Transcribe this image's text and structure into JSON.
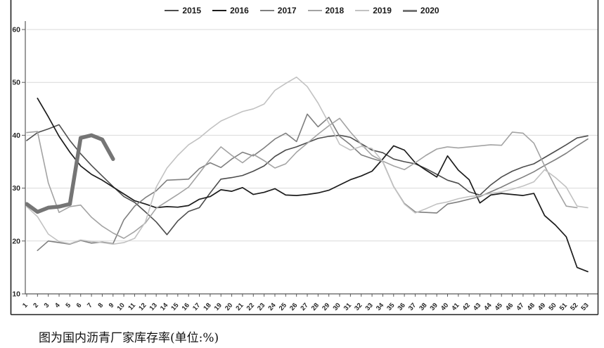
{
  "caption": "图为国内沥青厂家库存率(单位:%)",
  "chart_data": {
    "type": "line",
    "title": "",
    "xlabel": "",
    "ylabel": "",
    "unit": "%",
    "categories": [
      1,
      2,
      3,
      4,
      5,
      6,
      7,
      8,
      9,
      10,
      11,
      12,
      13,
      14,
      15,
      16,
      17,
      18,
      19,
      20,
      21,
      22,
      23,
      24,
      25,
      26,
      27,
      28,
      29,
      30,
      31,
      32,
      33,
      34,
      35,
      36,
      37,
      38,
      39,
      40,
      41,
      42,
      43,
      44,
      45,
      46,
      47,
      48,
      49,
      50,
      51,
      52,
      53
    ],
    "ylim": [
      10,
      60
    ],
    "yticks": [
      10,
      20,
      30,
      40,
      50,
      60
    ],
    "grid": true,
    "legend_position": "top",
    "colors": {
      "gridline": "#d9d9d9",
      "axis": "#595959",
      "frame": "#1f1f1f",
      "tick_text": "#262626"
    },
    "series": [
      {
        "name": "2015",
        "color": "#4d4d4d",
        "width": 1.6,
        "values": [
          39,
          40.5,
          41.2,
          42,
          39,
          36.5,
          34.3,
          32.3,
          30.3,
          28.4,
          27.3,
          25.5,
          23.6,
          21.2,
          23.8,
          25.6,
          26.3,
          29.1,
          31.7,
          32,
          32.4,
          33.2,
          34.2,
          36,
          37.2,
          37.8,
          38.6,
          39.4,
          39.8,
          40,
          39.6,
          38.4,
          37.2,
          36.7,
          35.5,
          35,
          34.6,
          33.7,
          32.6,
          31.5,
          30.9,
          29.3,
          28.7,
          30.6,
          32.1,
          33.2,
          34,
          34.6,
          35.8,
          37,
          38.2,
          39.5,
          39.9
        ]
      },
      {
        "name": "2016",
        "color": "#1c1c1c",
        "width": 1.7,
        "values": [
          null,
          47,
          43.5,
          39.8,
          36.8,
          34.2,
          32.6,
          31.5,
          30.2,
          28.9,
          27.6,
          27,
          26.3,
          26.5,
          26.4,
          26.7,
          27.9,
          28.4,
          29.7,
          29.4,
          30.1,
          28.8,
          29.2,
          29.9,
          28.7,
          28.6,
          28.8,
          29.1,
          29.6,
          30.6,
          31.6,
          32.3,
          33.2,
          35.5,
          38,
          37.2,
          34.8,
          33.4,
          32.1,
          36.1,
          33.4,
          31.6,
          27.2,
          28.7,
          29,
          28.8,
          28.6,
          29,
          24.8,
          23,
          20.8,
          15,
          14.2
        ]
      },
      {
        "name": "2017",
        "color": "#7f7f7f",
        "width": 1.6,
        "values": [
          null,
          18.2,
          20,
          19.7,
          19.4,
          20.1,
          19.6,
          19.8,
          19.5,
          24,
          26.6,
          28.2,
          29.5,
          31.5,
          31.6,
          31.7,
          33.7,
          34.8,
          33.9,
          35.5,
          36.8,
          36.1,
          37.6,
          39.3,
          40.4,
          38.8,
          44,
          41.6,
          43.4,
          39.8,
          38.2,
          36.3,
          35.6,
          35,
          30.3,
          27.1,
          25.5,
          25.4,
          25.3,
          27,
          27.4,
          27.9,
          28.4,
          29.3,
          30.2,
          31.2,
          32.1,
          33.1,
          34.3,
          35.4,
          36.6,
          38,
          39.3
        ]
      },
      {
        "name": "2018",
        "color": "#a3a3a3",
        "width": 1.6,
        "values": [
          40.5,
          40.7,
          31,
          25.4,
          26.5,
          26.8,
          24.5,
          22.8,
          21.5,
          20.5,
          21.8,
          23.4,
          26.2,
          27.5,
          28.8,
          30.2,
          32.8,
          35.5,
          37.8,
          36.2,
          34.8,
          36.4,
          35.2,
          33.8,
          34.6,
          36.8,
          38.5,
          40.2,
          41.8,
          43.2,
          40.6,
          38.3,
          36.2,
          35.1,
          34.2,
          33.5,
          34.8,
          36.2,
          37.4,
          37.8,
          37.6,
          37.8,
          38,
          38.2,
          38.1,
          40.6,
          40.4,
          38.5,
          34.2,
          30.2,
          26.6,
          26.3,
          null
        ]
      },
      {
        "name": "2019",
        "color": "#c2c2c2",
        "width": 1.6,
        "values": [
          26.5,
          24.6,
          21.3,
          19.9,
          19.5,
          20.2,
          19.9,
          19.7,
          19.4,
          19.7,
          20.5,
          23.6,
          30.2,
          33.8,
          36.2,
          38.2,
          39.5,
          41.2,
          42.7,
          43.6,
          44.5,
          45,
          45.9,
          48.5,
          49.8,
          51,
          49.2,
          46.1,
          42.3,
          38.3,
          37.2,
          37.9,
          37.5,
          35,
          30.3,
          27,
          25.3,
          26.1,
          27,
          27.4,
          28,
          28.4,
          28.6,
          29,
          29.3,
          29.8,
          30.4,
          31.2,
          33.5,
          32,
          30.2,
          26.6,
          26.3
        ]
      },
      {
        "name": "2020",
        "color": "#757575",
        "width": 5.5,
        "values": [
          27,
          25.5,
          26.3,
          26.5,
          27,
          39.5,
          40,
          39.2,
          35.5
        ]
      }
    ]
  }
}
